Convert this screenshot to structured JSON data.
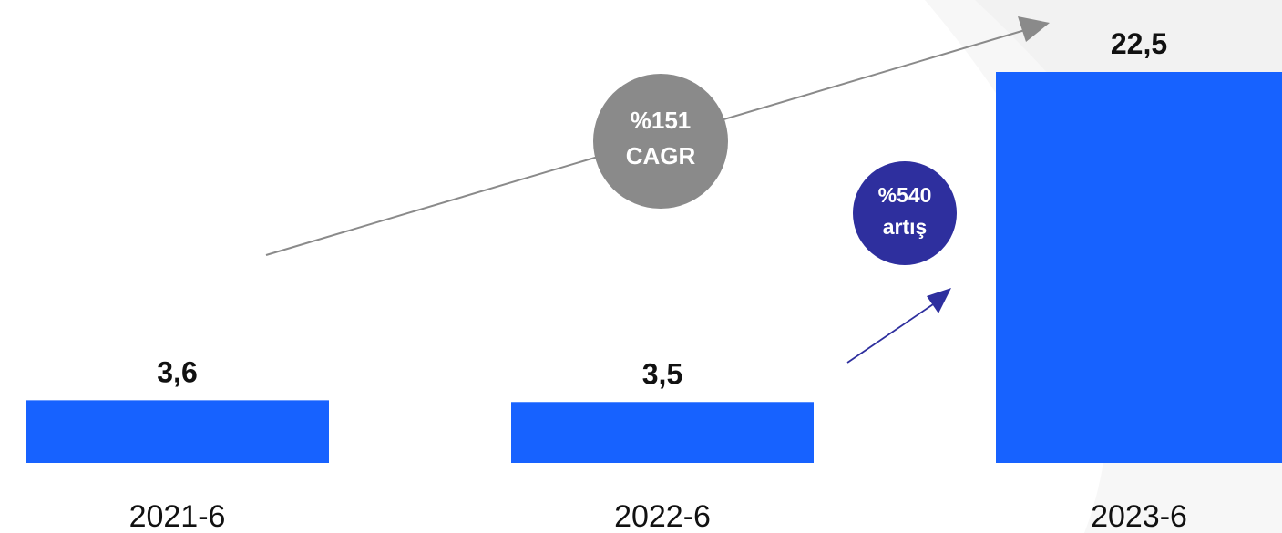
{
  "chart_data": {
    "type": "bar",
    "categories": [
      "2021-6",
      "2022-6",
      "2023-6"
    ],
    "values": [
      3.6,
      3.5,
      22.5
    ],
    "value_labels": [
      "3,6",
      "3,5",
      "22,5"
    ],
    "ylim": [
      0,
      25
    ],
    "grid": false,
    "bar_color": "#1762FF",
    "annotations": [
      {
        "id": "cagr",
        "line1": "%151",
        "line2": "CAGR",
        "from": "2021-6",
        "to": "2023-6",
        "color": "#8A8A8A"
      },
      {
        "id": "increase",
        "line1": "%540",
        "line2": "artış",
        "from": "2022-6",
        "to": "2023-6",
        "color": "#2E2F9E"
      }
    ]
  }
}
